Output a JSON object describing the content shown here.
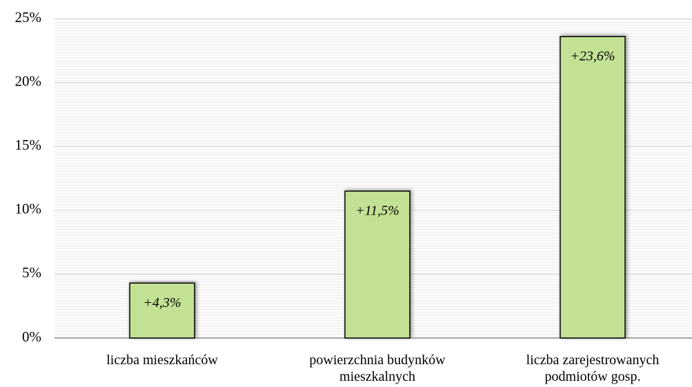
{
  "chart_data": {
    "type": "bar",
    "categories": [
      "liczba mieszkańców",
      "powierzchnia budynków mieszkalnych",
      "liczba zarejestrowanych podmiotów gosp."
    ],
    "values": [
      4.3,
      11.5,
      23.6
    ],
    "value_labels": [
      "+4,3%",
      "+11,5%",
      "+23,6%"
    ],
    "color": "#c2e195",
    "ylim": [
      0,
      25
    ],
    "yticks": [
      {
        "value": 0,
        "label": "0%"
      },
      {
        "value": 5,
        "label": "5%"
      },
      {
        "value": 10,
        "label": "10%"
      },
      {
        "value": 15,
        "label": "15%"
      },
      {
        "value": 20,
        "label": "20%"
      },
      {
        "value": 25,
        "label": "25%"
      }
    ],
    "grid": true
  }
}
